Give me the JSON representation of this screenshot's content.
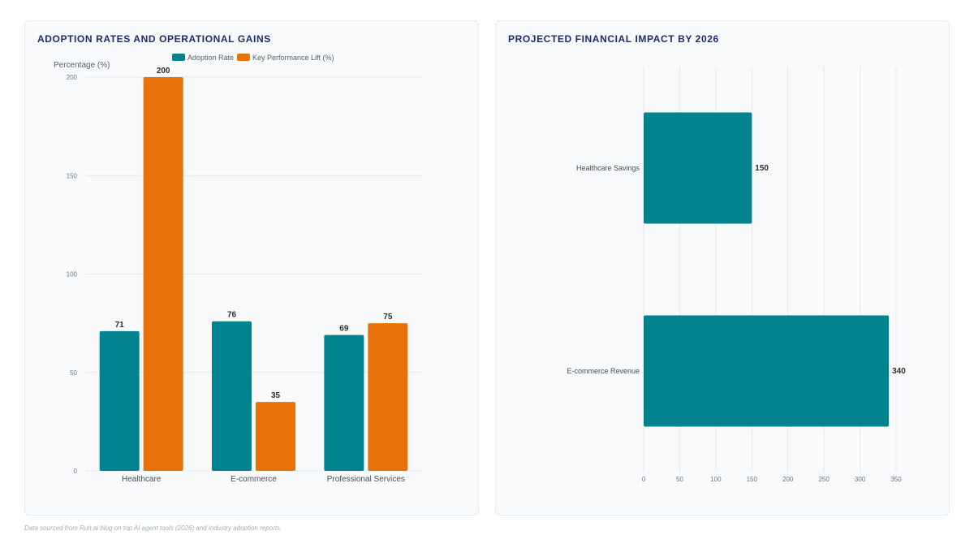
{
  "colors": {
    "teal": "#00838f",
    "orange": "#e8710a",
    "title": "#1e2a6b",
    "grid": "#e4e9ee",
    "axis_text": "#6b7683",
    "label_text": "#2c2c2c"
  },
  "left_panel": {
    "title": "ADOPTION RATES AND OPERATIONAL GAINS"
  },
  "right_panel": {
    "title": "PROJECTED FINANCIAL IMPACT BY 2026"
  },
  "footer": {
    "source": "Data sourced from Ruh.ai blog on top AI agent tools (2026) and industry adoption reports."
  },
  "chart_data": [
    {
      "type": "bar",
      "title": "ADOPTION RATES AND OPERATIONAL GAINS",
      "ylabel": "Percentage (%)",
      "xlabel": "",
      "categories": [
        "Healthcare",
        "E-commerce",
        "Professional Services"
      ],
      "series": [
        {
          "name": "Adoption Rate",
          "color": "#00838f",
          "values": [
            71,
            76,
            69
          ]
        },
        {
          "name": "Key Performance Lift (%)",
          "color": "#e8710a",
          "values": [
            200,
            35,
            75
          ]
        }
      ],
      "ylim": [
        0,
        200
      ],
      "yticks": [
        0,
        50,
        100,
        150,
        200
      ],
      "legend": "top",
      "grid": true
    },
    {
      "type": "bar",
      "orientation": "horizontal",
      "title": "PROJECTED FINANCIAL IMPACT BY 2026",
      "categories": [
        "Healthcare Savings",
        "E-commerce Revenue"
      ],
      "values": [
        150,
        340
      ],
      "color": "#00838f",
      "xlim": [
        0,
        350
      ],
      "xticks": [
        0,
        50,
        100,
        150,
        200,
        250,
        300,
        350
      ],
      "grid": true
    }
  ]
}
